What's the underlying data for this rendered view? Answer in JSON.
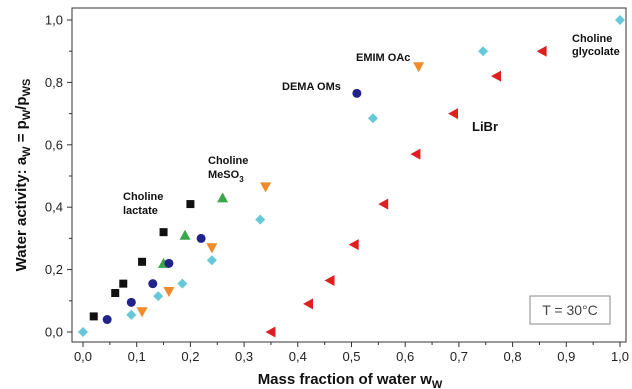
{
  "chart_data": {
    "type": "scatter",
    "xlabel": "Mass fraction of water w",
    "xlabel_sub": "W",
    "ylabel_parts": [
      "Water activity: a",
      "W",
      " = p",
      "W",
      "/p",
      "WS"
    ],
    "xlim": [
      0,
      1
    ],
    "ylim": [
      0,
      1
    ],
    "xticks": [
      "0,0",
      "0,1",
      "0,2",
      "0,3",
      "0,4",
      "0,5",
      "0,6",
      "0,7",
      "0,8",
      "0,9",
      "1,0"
    ],
    "yticks": [
      "0,0",
      "0,2",
      "0,4",
      "0,6",
      "0,8",
      "1,0"
    ],
    "grid": false,
    "textbox": "T = 30°C",
    "series": [
      {
        "name": "Choline lactate",
        "marker": "square",
        "color": "#111111",
        "label_lines": [
          "Choline",
          "lactate"
        ],
        "x": [
          0.02,
          0.06,
          0.075,
          0.11,
          0.15,
          0.2
        ],
        "y": [
          0.05,
          0.125,
          0.155,
          0.225,
          0.32,
          0.41
        ]
      },
      {
        "name": "Choline MeSO3",
        "marker": "triangle-up",
        "color": "#3aa64a",
        "label_lines": [
          "Choline",
          "MeSO",
          "3"
        ],
        "x": [
          0.15,
          0.19,
          0.26
        ],
        "y": [
          0.22,
          0.31,
          0.43
        ]
      },
      {
        "name": "DEMA OMs",
        "marker": "circle",
        "color": "#22228a",
        "label_lines": [
          "DEMA OMs"
        ],
        "x": [
          0.045,
          0.09,
          0.13,
          0.16,
          0.22,
          0.51
        ],
        "y": [
          0.04,
          0.095,
          0.155,
          0.22,
          0.3,
          0.765
        ]
      },
      {
        "name": "EMIM OAc",
        "marker": "triangle-down",
        "color": "#f08a2a",
        "label_lines": [
          "EMIM OAc"
        ],
        "x": [
          0.11,
          0.16,
          0.24,
          0.34,
          0.625
        ],
        "y": [
          0.065,
          0.13,
          0.27,
          0.465,
          0.85
        ]
      },
      {
        "name": "Choline glycolate",
        "marker": "diamond",
        "color": "#66c8d8",
        "label_lines": [
          "Choline",
          "glycolate"
        ],
        "x": [
          0.0,
          0.09,
          0.14,
          0.185,
          0.24,
          0.33,
          0.54,
          0.745,
          1.0
        ],
        "y": [
          0.0,
          0.055,
          0.115,
          0.155,
          0.23,
          0.36,
          0.685,
          0.9,
          1.0
        ]
      },
      {
        "name": "LiBr",
        "marker": "triangle-left",
        "color": "#e02020",
        "label_lines": [
          "LiBr"
        ],
        "x": [
          0.35,
          0.42,
          0.46,
          0.505,
          0.56,
          0.62,
          0.69,
          0.77,
          0.855
        ],
        "y": [
          0.0,
          0.09,
          0.165,
          0.28,
          0.41,
          0.57,
          0.7,
          0.82,
          0.9
        ]
      }
    ]
  }
}
